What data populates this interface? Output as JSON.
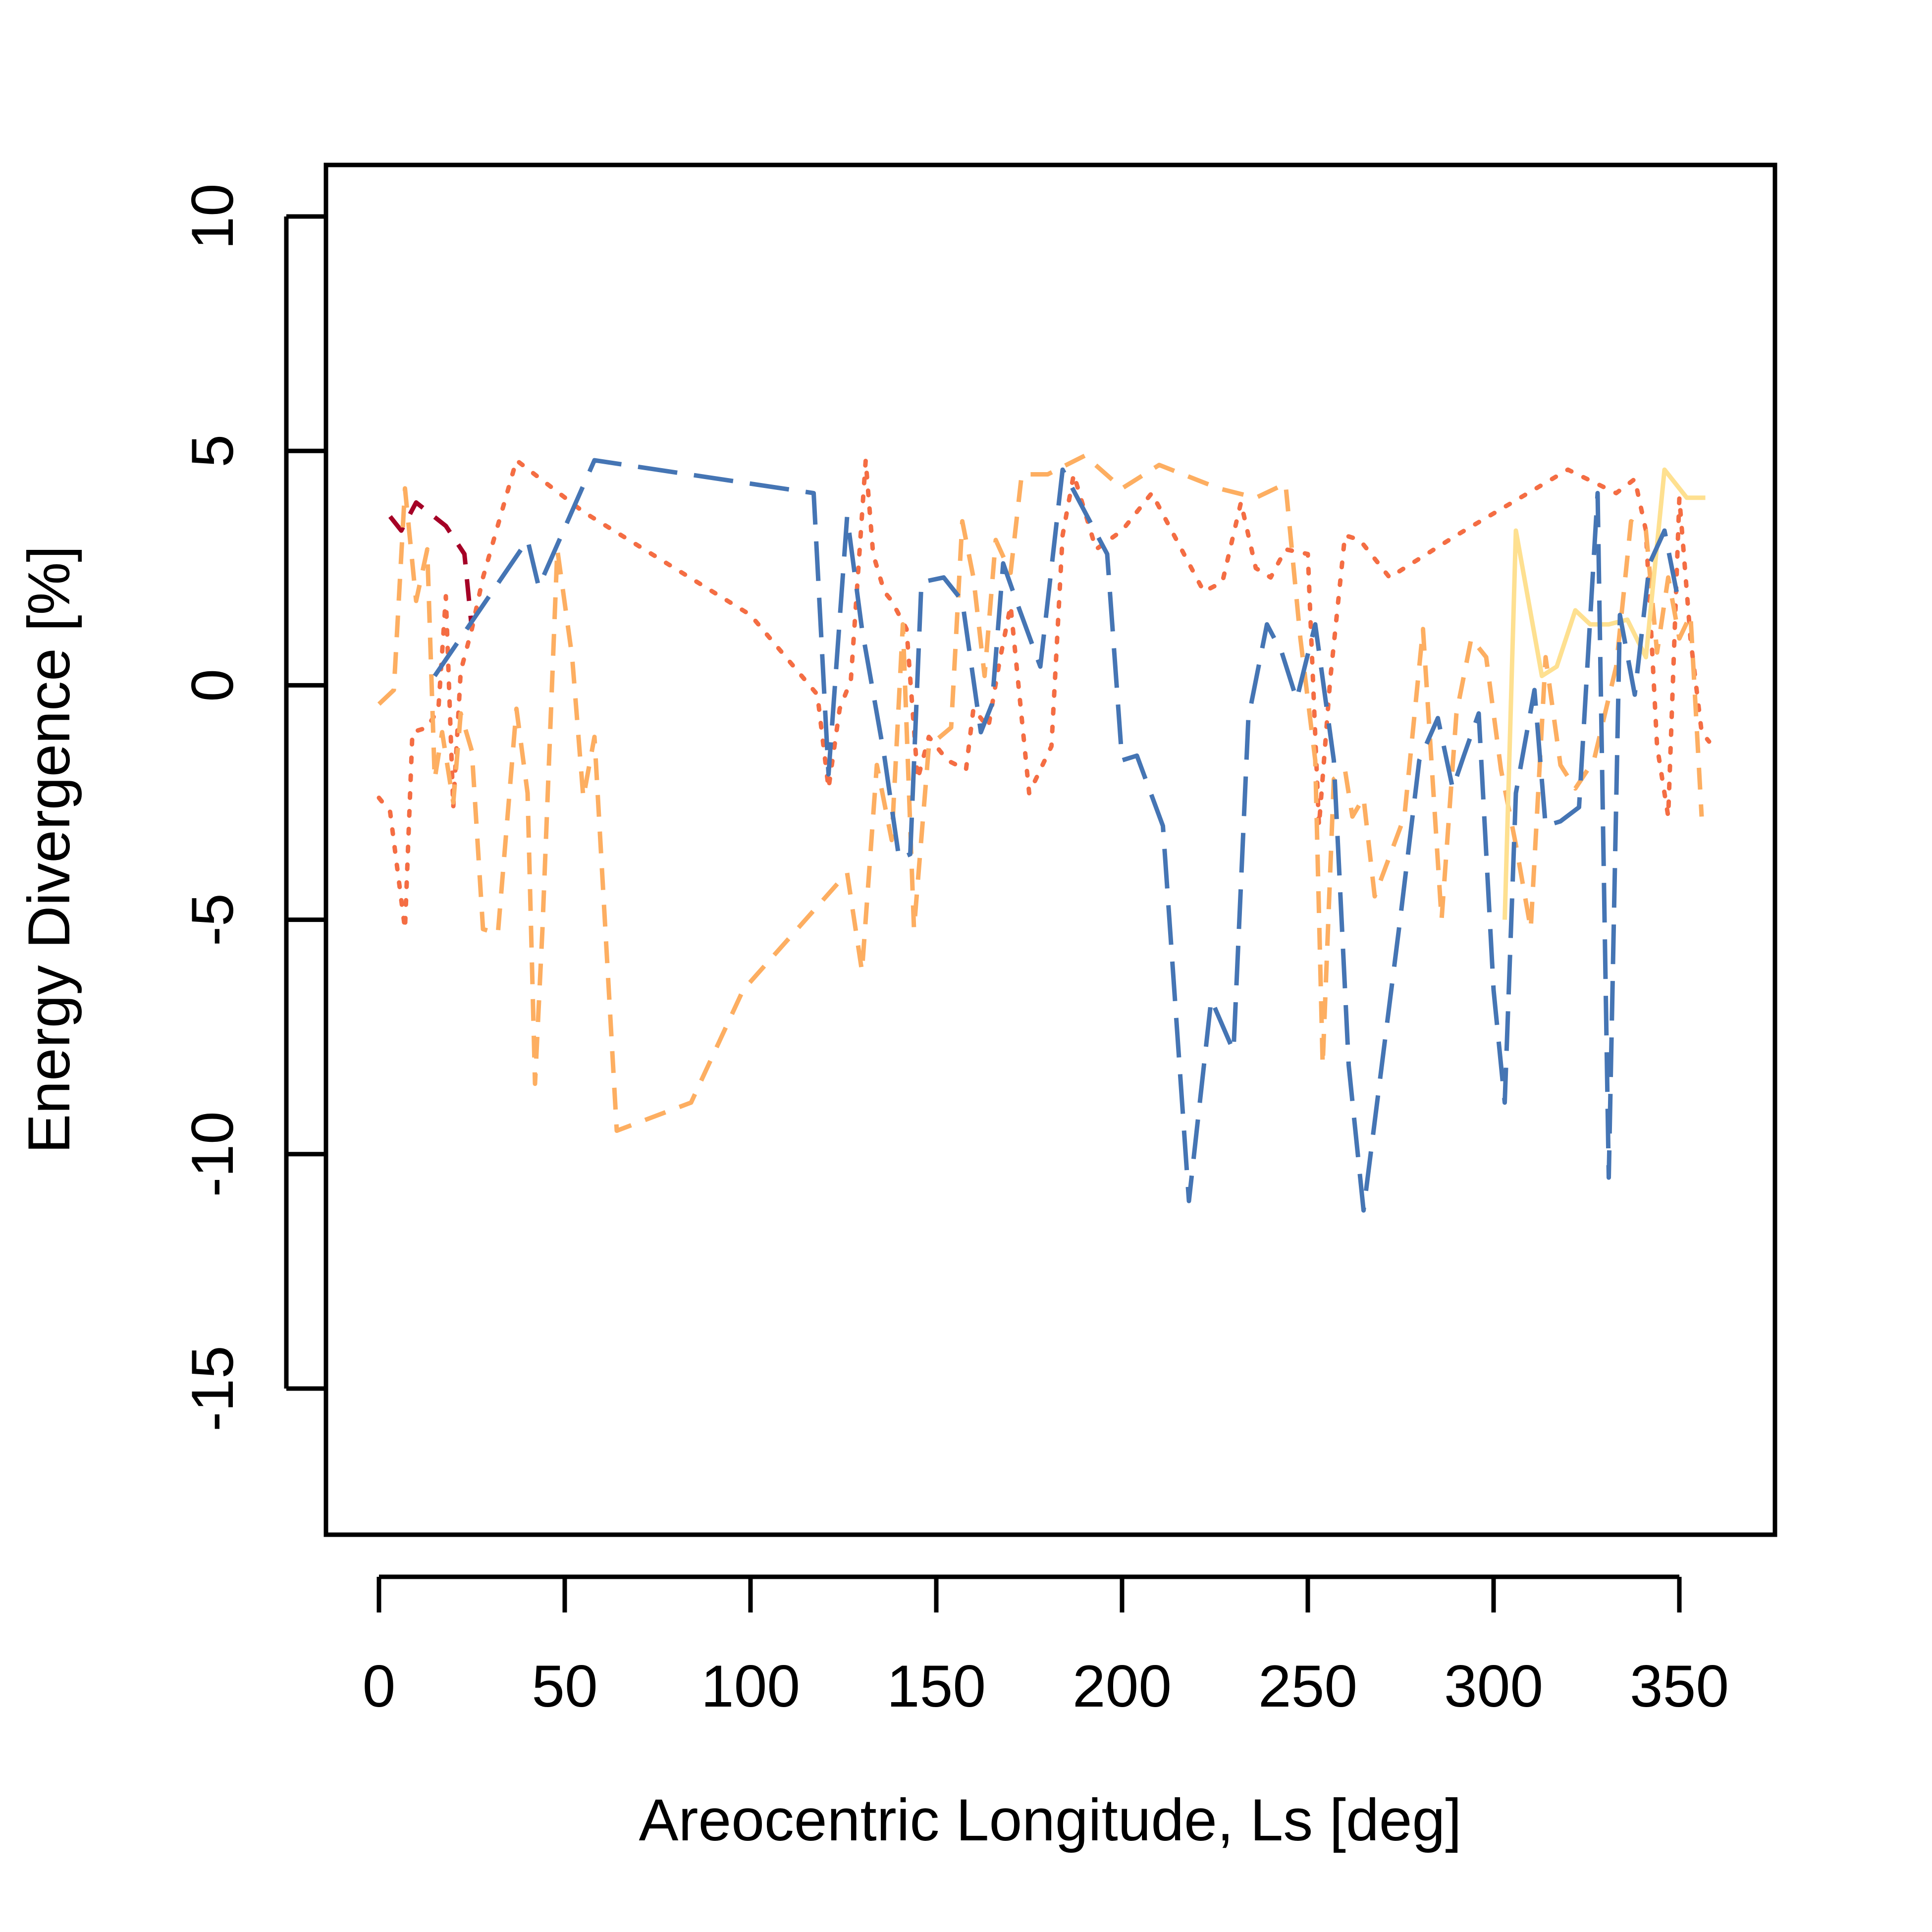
{
  "chart_data": {
    "type": "line",
    "title": "",
    "xlabel": "Areocentric Longitude, Ls [deg]",
    "ylabel": "Energy Divergence [%]",
    "xlim": [
      -15,
      375
    ],
    "ylim": [
      -18,
      11
    ],
    "x_ticks": [
      0,
      50,
      100,
      150,
      200,
      250,
      300,
      350
    ],
    "y_ticks": [
      -15,
      -10,
      -5,
      0,
      5,
      10
    ],
    "grid": false,
    "legend": "none",
    "series": [
      {
        "color": "#A50026",
        "dash": "dashed",
        "points": [
          [
            3,
            3.6
          ],
          [
            6,
            3.3
          ],
          [
            10,
            3.9
          ],
          [
            18,
            3.4
          ],
          [
            23,
            2.8
          ],
          [
            25,
            1.2
          ]
        ]
      },
      {
        "color": "#F46D43",
        "dash": "dotted",
        "points": [
          [
            0,
            -2.4
          ],
          [
            3,
            -2.7
          ],
          [
            7,
            -5.2
          ],
          [
            9,
            -1.0
          ],
          [
            13,
            -0.9
          ],
          [
            16,
            -0.5
          ],
          [
            18,
            1.9
          ],
          [
            20,
            -2.6
          ],
          [
            22,
            0.3
          ],
          [
            25,
            1.2
          ],
          [
            28,
            2.3
          ],
          [
            37,
            4.8
          ],
          [
            55,
            3.7
          ],
          [
            100,
            1.5
          ],
          [
            118,
            -0.2
          ],
          [
            121,
            -2.2
          ],
          [
            124,
            -0.5
          ],
          [
            127,
            0.1
          ],
          [
            131,
            4.8
          ],
          [
            133,
            2.8
          ],
          [
            136,
            2.0
          ],
          [
            138,
            1.8
          ],
          [
            142,
            1.2
          ],
          [
            145,
            -2.0
          ],
          [
            148,
            -1.1
          ],
          [
            153,
            -1.6
          ],
          [
            158,
            -1.8
          ],
          [
            160,
            -0.5
          ],
          [
            164,
            -0.9
          ],
          [
            167,
            0.5
          ],
          [
            170,
            1.7
          ],
          [
            175,
            -2.3
          ],
          [
            181,
            -1.3
          ],
          [
            184,
            3.2
          ],
          [
            187,
            4.5
          ],
          [
            193,
            2.9
          ],
          [
            200,
            3.3
          ],
          [
            208,
            4.1
          ],
          [
            222,
            2.0
          ],
          [
            227,
            2.2
          ],
          [
            232,
            3.9
          ],
          [
            236,
            2.5
          ],
          [
            240,
            2.3
          ],
          [
            244,
            2.9
          ],
          [
            250,
            2.8
          ],
          [
            253,
            -3.0
          ],
          [
            256,
            0.1
          ],
          [
            260,
            3.2
          ],
          [
            264,
            3.1
          ],
          [
            272,
            2.3
          ],
          [
            290,
            3.2
          ],
          [
            320,
            4.6
          ],
          [
            333,
            4.1
          ],
          [
            338,
            4.4
          ],
          [
            341,
            3.3
          ],
          [
            344,
            -1.3
          ],
          [
            347,
            -2.8
          ],
          [
            350,
            4.0
          ],
          [
            353,
            1.0
          ],
          [
            356,
            -1.0
          ],
          [
            358,
            -1.2
          ]
        ]
      },
      {
        "color": "#FDAE61",
        "dash": "dashed",
        "points": [
          [
            0,
            -0.4
          ],
          [
            4,
            -0.1
          ],
          [
            7,
            4.2
          ],
          [
            10,
            1.8
          ],
          [
            13,
            2.9
          ],
          [
            15,
            -2.0
          ],
          [
            17,
            -1.0
          ],
          [
            20,
            -2.5
          ],
          [
            22,
            -0.6
          ],
          [
            25,
            -1.4
          ],
          [
            28,
            -5.2
          ],
          [
            32,
            -5.3
          ],
          [
            37,
            -0.5
          ],
          [
            40,
            -2.3
          ],
          [
            42,
            -8.5
          ],
          [
            44,
            -5.2
          ],
          [
            48,
            2.9
          ],
          [
            52,
            0.6
          ],
          [
            55,
            -2.4
          ],
          [
            58,
            -1.1
          ],
          [
            64,
            -9.5
          ],
          [
            84,
            -8.9
          ],
          [
            98,
            -6.5
          ],
          [
            126,
            -4.0
          ],
          [
            130,
            -6.1
          ],
          [
            134,
            -1.7
          ],
          [
            138,
            -3.3
          ],
          [
            141,
            1.3
          ],
          [
            144,
            -5.2
          ],
          [
            148,
            -1.3
          ],
          [
            154,
            -0.9
          ],
          [
            157,
            3.5
          ],
          [
            160,
            2.3
          ],
          [
            163,
            0.2
          ],
          [
            166,
            3.1
          ],
          [
            170,
            2.4
          ],
          [
            173,
            4.5
          ],
          [
            180,
            4.5
          ],
          [
            190,
            4.9
          ],
          [
            200,
            4.2
          ],
          [
            210,
            4.7
          ],
          [
            226,
            4.2
          ],
          [
            236,
            4.0
          ],
          [
            244,
            4.3
          ],
          [
            248,
            1.0
          ],
          [
            252,
            -1.6
          ],
          [
            254,
            -8.1
          ],
          [
            257,
            -2.0
          ],
          [
            260,
            -1.8
          ],
          [
            262,
            -2.8
          ],
          [
            265,
            -2.4
          ],
          [
            268,
            -4.5
          ],
          [
            276,
            -2.8
          ],
          [
            281,
            1.2
          ],
          [
            286,
            -5.0
          ],
          [
            290,
            -0.6
          ],
          [
            294,
            1.0
          ],
          [
            298,
            0.6
          ],
          [
            302,
            -1.8
          ],
          [
            306,
            -3.4
          ],
          [
            310,
            -5.2
          ],
          [
            314,
            0.6
          ],
          [
            318,
            -1.7
          ],
          [
            322,
            -2.2
          ],
          [
            327,
            -1.6
          ],
          [
            333,
            0.4
          ],
          [
            337,
            3.5
          ],
          [
            341,
            3.3
          ],
          [
            344,
            0.7
          ],
          [
            347,
            2.3
          ],
          [
            350,
            1.0
          ],
          [
            353,
            1.5
          ],
          [
            356,
            -2.8
          ]
        ]
      },
      {
        "color": "#FEE090",
        "dash": "solid",
        "points": [
          [
            303,
            -5.0
          ],
          [
            306,
            3.3
          ],
          [
            313,
            0.2
          ],
          [
            317,
            0.4
          ],
          [
            322,
            1.6
          ],
          [
            326,
            1.3
          ],
          [
            331,
            1.3
          ],
          [
            336,
            1.4
          ],
          [
            341,
            0.6
          ],
          [
            346,
            4.6
          ],
          [
            352,
            4.0
          ],
          [
            357,
            4.0
          ]
        ]
      },
      {
        "color": "#4575B4",
        "dash": "longdash",
        "points": [
          [
            15,
            0.2
          ],
          [
            40,
            3.1
          ],
          [
            43,
            2.1
          ],
          [
            58,
            4.8
          ],
          [
            117,
            4.1
          ],
          [
            121,
            -1.9
          ],
          [
            126,
            3.6
          ],
          [
            130,
            1.2
          ],
          [
            136,
            -1.5
          ],
          [
            140,
            -3.7
          ],
          [
            143,
            -3.6
          ],
          [
            146,
            2.2
          ],
          [
            152,
            2.3
          ],
          [
            157,
            1.8
          ],
          [
            162,
            -1.0
          ],
          [
            165,
            -0.4
          ],
          [
            168,
            2.6
          ],
          [
            172,
            1.7
          ],
          [
            178,
            0.4
          ],
          [
            184,
            4.6
          ],
          [
            196,
            2.8
          ],
          [
            200,
            -1.6
          ],
          [
            204,
            -1.5
          ],
          [
            211,
            -3.0
          ],
          [
            218,
            -11.0
          ],
          [
            224,
            -6.7
          ],
          [
            230,
            -7.8
          ],
          [
            234,
            -0.7
          ],
          [
            239,
            1.3
          ],
          [
            243,
            0.7
          ],
          [
            247,
            -0.3
          ],
          [
            252,
            1.3
          ],
          [
            257,
            -1.6
          ],
          [
            261,
            -8.1
          ],
          [
            265,
            -11.2
          ],
          [
            275,
            -4.9
          ],
          [
            280,
            -1.6
          ],
          [
            285,
            -0.7
          ],
          [
            289,
            -2.2
          ],
          [
            292,
            -1.5
          ],
          [
            296,
            -0.6
          ],
          [
            300,
            -6.5
          ],
          [
            303,
            -8.9
          ],
          [
            306,
            -2.3
          ],
          [
            311,
            -0.1
          ],
          [
            314,
            -3.0
          ],
          [
            318,
            -2.9
          ],
          [
            323,
            -2.6
          ],
          [
            328,
            4.1
          ],
          [
            331,
            -10.5
          ],
          [
            334,
            1.5
          ],
          [
            338,
            -0.2
          ],
          [
            342,
            2.6
          ],
          [
            346,
            3.3
          ],
          [
            350,
            1.7
          ]
        ]
      }
    ]
  }
}
